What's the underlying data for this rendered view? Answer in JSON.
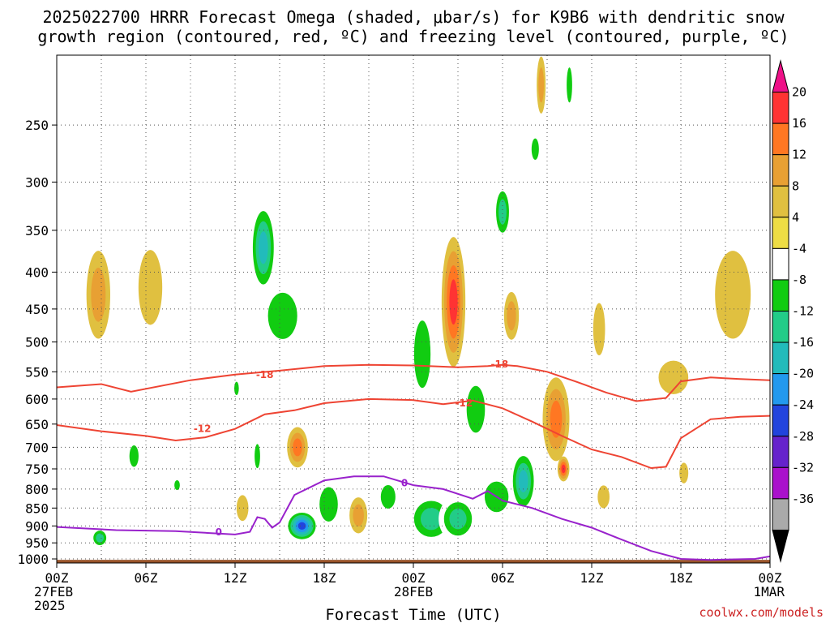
{
  "chart_data": {
    "type": "heatmap",
    "title_lines": [
      "2025022700 HRRR Forecast Omega (shaded, μbar/s) for K9B6 with dendritic snow",
      "growth region (contoured, red, ºC) and freezing level (contoured, purple, ºC)"
    ],
    "xlabel": "Forecast Time (UTC)",
    "credit": "coolwx.com/models",
    "x_ticks": [
      {
        "hour": 0,
        "lines": [
          "00Z",
          "27FEB",
          "2025"
        ]
      },
      {
        "hour": 6,
        "lines": [
          "06Z"
        ]
      },
      {
        "hour": 12,
        "lines": [
          "12Z"
        ]
      },
      {
        "hour": 18,
        "lines": [
          "18Z"
        ]
      },
      {
        "hour": 24,
        "lines": [
          "00Z",
          "28FEB"
        ]
      },
      {
        "hour": 30,
        "lines": [
          "06Z"
        ]
      },
      {
        "hour": 36,
        "lines": [
          "12Z"
        ]
      },
      {
        "hour": 42,
        "lines": [
          "18Z"
        ]
      },
      {
        "hour": 48,
        "lines": [
          "00Z",
          "1MAR"
        ]
      }
    ],
    "x_range": [
      0,
      48
    ],
    "y_ticks": [
      250,
      300,
      350,
      400,
      450,
      500,
      550,
      600,
      650,
      700,
      750,
      800,
      850,
      900,
      950,
      1000
    ],
    "y_range_hPa": [
      200,
      1013
    ],
    "y_scale": "log-pressure",
    "grid": true,
    "colorbar": {
      "levels": [
        20,
        16,
        12,
        8,
        4,
        -4,
        -8,
        -12,
        -16,
        -20,
        -24,
        -28,
        -32,
        -36
      ],
      "colors": [
        "#ee1188",
        "#ff3333",
        "#ff7722",
        "#e8a033",
        "#e0c040",
        "#eedd44",
        "#ffffff",
        "#11cc11",
        "#22cc88",
        "#22bbbb",
        "#2299ee",
        "#2244dd",
        "#6622cc",
        "#aa11cc",
        "#aaaaaa",
        "#000000"
      ]
    },
    "contours": [
      {
        "name": "-18",
        "color": "#ee4433",
        "points": [
          [
            0,
            578
          ],
          [
            3,
            572
          ],
          [
            5,
            586
          ],
          [
            9,
            565
          ],
          [
            12,
            555
          ],
          [
            15,
            548
          ],
          [
            18,
            540
          ],
          [
            21,
            538
          ],
          [
            24,
            539
          ],
          [
            27,
            542
          ],
          [
            29,
            540
          ],
          [
            30,
            538
          ],
          [
            31,
            540
          ],
          [
            33,
            550
          ],
          [
            35,
            568
          ],
          [
            37,
            588
          ],
          [
            39,
            604
          ],
          [
            41,
            598
          ],
          [
            42,
            567
          ],
          [
            44,
            560
          ],
          [
            46,
            563
          ],
          [
            48,
            565
          ]
        ],
        "labels": [
          {
            "x": 14,
            "y": 555,
            "text": "-18"
          },
          {
            "x": 29.8,
            "y": 537,
            "text": "-18"
          }
        ]
      },
      {
        "name": "-12",
        "color": "#ee4433",
        "points": [
          [
            0,
            652
          ],
          [
            3,
            665
          ],
          [
            6,
            675
          ],
          [
            8,
            685
          ],
          [
            10,
            678
          ],
          [
            12,
            660
          ],
          [
            14,
            630
          ],
          [
            16,
            622
          ],
          [
            18,
            608
          ],
          [
            21,
            600
          ],
          [
            24,
            602
          ],
          [
            26,
            610
          ],
          [
            28,
            603
          ],
          [
            30,
            618
          ],
          [
            32,
            645
          ],
          [
            34,
            675
          ],
          [
            36,
            705
          ],
          [
            38,
            722
          ],
          [
            40,
            748
          ],
          [
            41,
            745
          ],
          [
            42,
            680
          ],
          [
            44,
            640
          ],
          [
            46,
            635
          ],
          [
            48,
            633
          ]
        ],
        "labels": [
          {
            "x": 9.8,
            "y": 660,
            "text": "-12"
          },
          {
            "x": 27.4,
            "y": 608,
            "text": "-12"
          }
        ]
      },
      {
        "name": "0",
        "color": "#9922cc",
        "points": [
          [
            0,
            903
          ],
          [
            4,
            912
          ],
          [
            8,
            915
          ],
          [
            10,
            920
          ],
          [
            12,
            925
          ],
          [
            13,
            917
          ],
          [
            13.5,
            875
          ],
          [
            14,
            880
          ],
          [
            14.5,
            905
          ],
          [
            15,
            890
          ],
          [
            16,
            815
          ],
          [
            18,
            778
          ],
          [
            20,
            768
          ],
          [
            22,
            768
          ],
          [
            24,
            790
          ],
          [
            26,
            800
          ],
          [
            28,
            825
          ],
          [
            29,
            805
          ],
          [
            30,
            830
          ],
          [
            32,
            850
          ],
          [
            34,
            880
          ],
          [
            36,
            905
          ],
          [
            38,
            940
          ],
          [
            40,
            975
          ],
          [
            42,
            1000
          ],
          [
            44,
            1003
          ],
          [
            47,
            1000
          ],
          [
            48,
            992
          ]
        ],
        "labels": [
          {
            "x": 10.9,
            "y": 918,
            "text": "0"
          },
          {
            "x": 23.4,
            "y": 785,
            "text": "0"
          }
        ]
      }
    ],
    "omega_cells": [
      {
        "x": 2.8,
        "y": 430,
        "rx": 0.8,
        "h": 120,
        "v": 8
      },
      {
        "x": 6.3,
        "y": 420,
        "rx": 0.8,
        "h": 100,
        "v": 4
      },
      {
        "x": 2.9,
        "y": 935,
        "rx": 0.6,
        "h": 60,
        "v": -12
      },
      {
        "x": 5.2,
        "y": 720,
        "rx": 0.5,
        "h": 80,
        "v": -8
      },
      {
        "x": 8.1,
        "y": 790,
        "rx": 0.3,
        "h": 40,
        "v": -8
      },
      {
        "x": 12.1,
        "y": 580,
        "rx": 0.25,
        "h": 40,
        "v": -8
      },
      {
        "x": 12.5,
        "y": 850,
        "rx": 0.4,
        "h": 70,
        "v": 4
      },
      {
        "x": 13.5,
        "y": 720,
        "rx": 0.3,
        "h": 90,
        "v": -8
      },
      {
        "x": 13.9,
        "y": 370,
        "rx": 0.9,
        "h": 110,
        "v": -16
      },
      {
        "x": 15.2,
        "y": 460,
        "rx": 1.6,
        "h": 110,
        "v": -8
      },
      {
        "x": 16.2,
        "y": 700,
        "rx": 0.7,
        "h": 90,
        "v": 12
      },
      {
        "x": 16.5,
        "y": 900,
        "rx": 1.1,
        "h": 90,
        "v": -24
      },
      {
        "x": 18.3,
        "y": 840,
        "rx": 1.0,
        "h": 150,
        "v": -8
      },
      {
        "x": 20.3,
        "y": 870,
        "rx": 0.6,
        "h": 100,
        "v": 8
      },
      {
        "x": 22.3,
        "y": 820,
        "rx": 0.8,
        "h": 100,
        "v": -8
      },
      {
        "x": 24.6,
        "y": 520,
        "rx": 0.9,
        "h": 180,
        "v": -8
      },
      {
        "x": 26.7,
        "y": 440,
        "rx": 0.8,
        "h": 180,
        "v": 16
      },
      {
        "x": 25.2,
        "y": 880,
        "rx": 1.6,
        "h": 140,
        "v": -12
      },
      {
        "x": 27.0,
        "y": 880,
        "rx": 1.3,
        "h": 130,
        "v": -12
      },
      {
        "x": 28.2,
        "y": 620,
        "rx": 1.0,
        "h": 150,
        "v": -8
      },
      {
        "x": 29.6,
        "y": 820,
        "rx": 1.3,
        "h": 130,
        "v": -8
      },
      {
        "x": 30.0,
        "y": 330,
        "rx": 0.6,
        "h": 60,
        "v": -12
      },
      {
        "x": 30.6,
        "y": 460,
        "rx": 0.5,
        "h": 70,
        "v": 8
      },
      {
        "x": 31.4,
        "y": 780,
        "rx": 0.9,
        "h": 160,
        "v": -16
      },
      {
        "x": 32.6,
        "y": 220,
        "rx": 0.3,
        "h": 40,
        "v": 8
      },
      {
        "x": 33.6,
        "y": 640,
        "rx": 0.9,
        "h": 170,
        "v": 12
      },
      {
        "x": 34.1,
        "y": 750,
        "rx": 0.4,
        "h": 60,
        "v": 16
      },
      {
        "x": 36.5,
        "y": 480,
        "rx": 0.4,
        "h": 80,
        "v": 4
      },
      {
        "x": 36.8,
        "y": 820,
        "rx": 0.4,
        "h": 60,
        "v": 4
      },
      {
        "x": 41.5,
        "y": 560,
        "rx": 1.0,
        "h": 60,
        "v": 4
      },
      {
        "x": 42.2,
        "y": 760,
        "rx": 0.3,
        "h": 50,
        "v": 4
      },
      {
        "x": 45.5,
        "y": 430,
        "rx": 1.2,
        "h": 120,
        "v": 4
      },
      {
        "x": 32.2,
        "y": 270,
        "rx": 0.4,
        "h": 30,
        "v": -8
      },
      {
        "x": 34.5,
        "y": 220,
        "rx": 0.3,
        "h": 40,
        "v": -8
      }
    ],
    "terrain_color": "#99542a"
  }
}
